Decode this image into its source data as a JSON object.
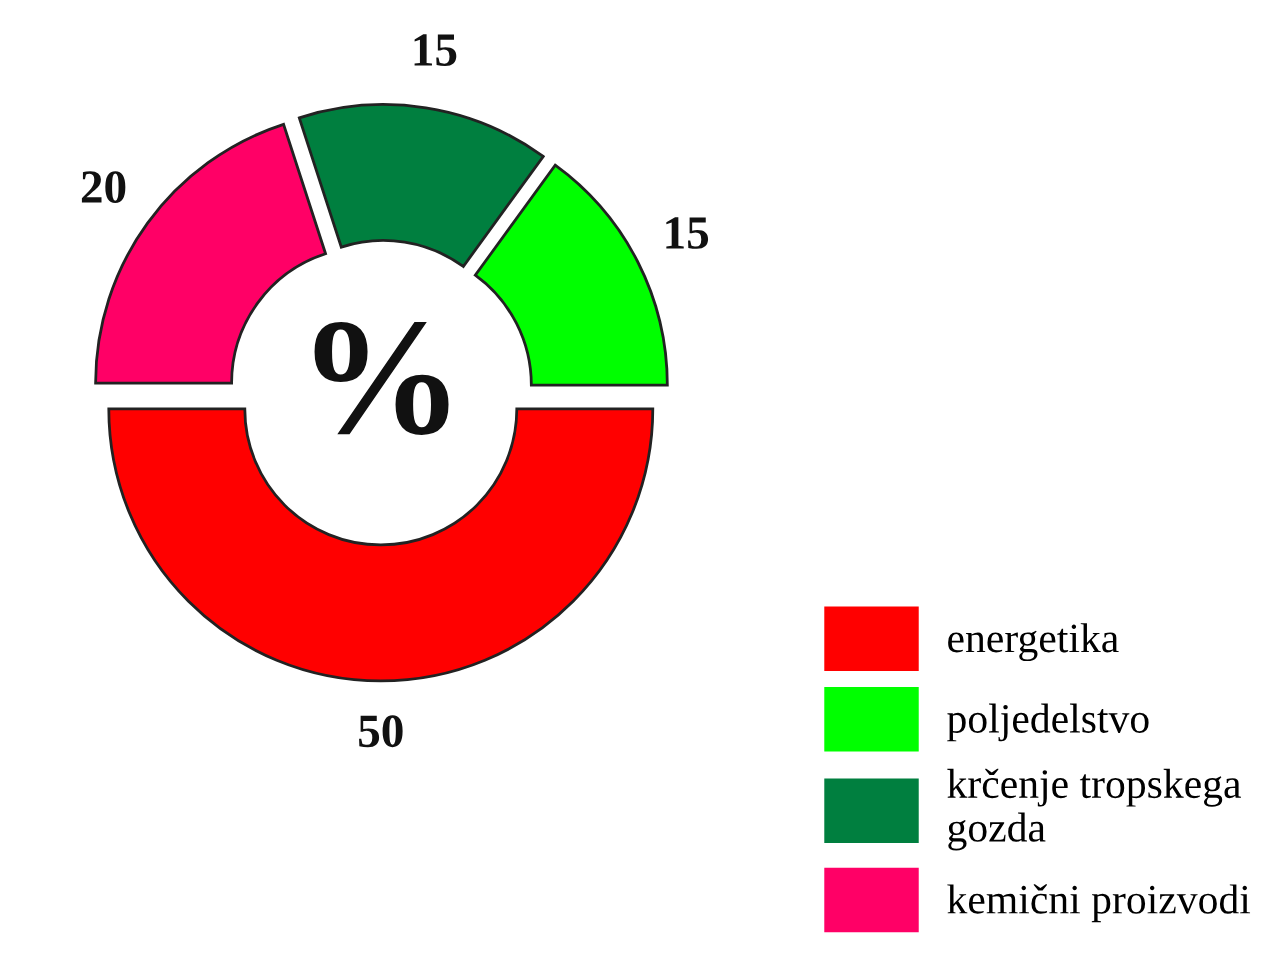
{
  "chart_data": {
    "type": "donut",
    "categories": [
      "energetika",
      "poljedelstvo",
      "krčenje tropskega\ngozda",
      "kemični proizvodi"
    ],
    "values": [
      50,
      15,
      15,
      20
    ],
    "colors": [
      "#ff0000",
      "#00ff00",
      "#007f3f",
      "#ff0066"
    ],
    "data_labels": true,
    "legend": "bottom right",
    "annotations": [
      "%"
    ]
  }
}
